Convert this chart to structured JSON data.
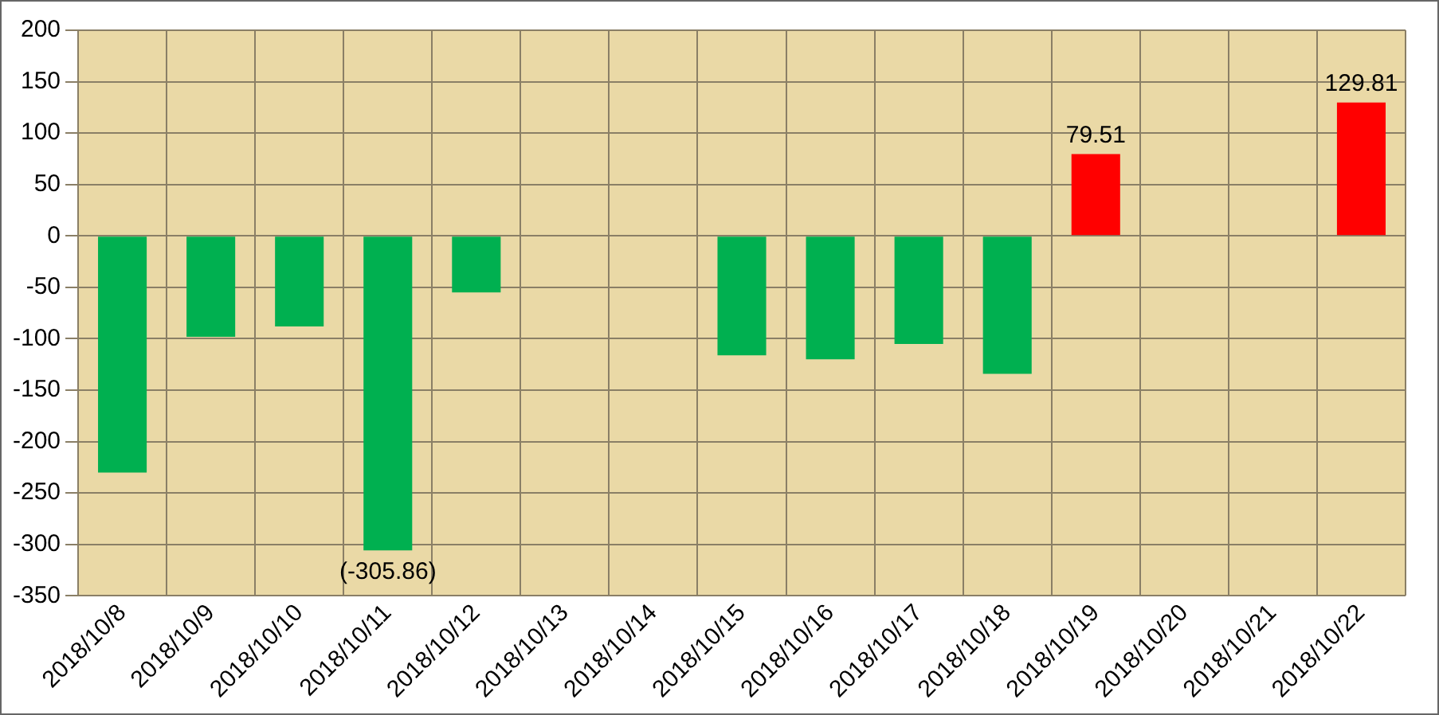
{
  "chart_data": {
    "type": "bar",
    "categories": [
      "2018/10/8",
      "2018/10/9",
      "2018/10/10",
      "2018/10/11",
      "2018/10/12",
      "2018/10/13",
      "2018/10/14",
      "2018/10/15",
      "2018/10/16",
      "2018/10/17",
      "2018/10/18",
      "2018/10/19",
      "2018/10/20",
      "2018/10/21",
      "2018/10/22"
    ],
    "values": [
      -230,
      -98,
      -88,
      -305.86,
      -55,
      null,
      null,
      -116,
      -120,
      -105,
      -134,
      79.51,
      null,
      null,
      129.81
    ],
    "colors": [
      "#00b050",
      "#00b050",
      "#00b050",
      "#00b050",
      "#00b050",
      "#00b050",
      "#00b050",
      "#00b050",
      "#00b050",
      "#00b050",
      "#00b050",
      "#ff0000",
      "#ff0000",
      "#ff0000",
      "#ff0000"
    ],
    "value_labels": [
      null,
      null,
      null,
      "(-305.86)",
      null,
      null,
      null,
      null,
      null,
      null,
      null,
      "79.51",
      null,
      null,
      "129.81"
    ],
    "ylim": [
      -350,
      200
    ],
    "yticks": [
      -350,
      -300,
      -250,
      -200,
      -150,
      -100,
      -50,
      0,
      50,
      100,
      150,
      200
    ],
    "grid": true
  }
}
